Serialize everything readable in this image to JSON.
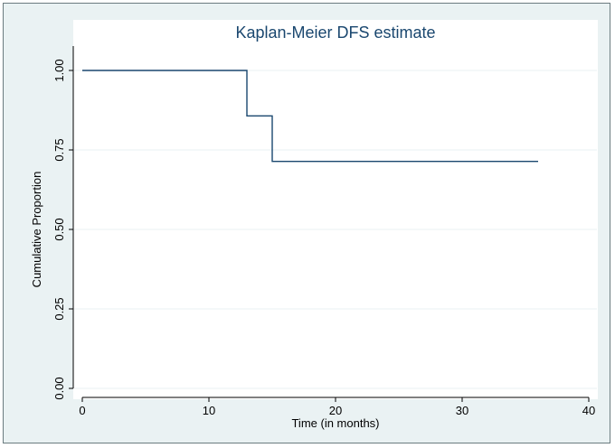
{
  "chart_data": {
    "type": "line",
    "title": "Kaplan-Meier DFS estimate",
    "xlabel": "Time (in months)",
    "ylabel": "Cumulative Proportion",
    "xlim": [
      0,
      40
    ],
    "ylim": [
      0,
      1
    ],
    "x_ticks": [
      0,
      10,
      20,
      30,
      40
    ],
    "x_tick_labels": [
      "0",
      "10",
      "20",
      "30",
      "40"
    ],
    "y_ticks": [
      0,
      0.25,
      0.5,
      0.75,
      1.0
    ],
    "y_tick_labels": [
      "0.00",
      "0.25",
      "0.50",
      "0.75",
      "1.00"
    ],
    "grid": true,
    "step": true,
    "series": [
      {
        "x": [
          0,
          13,
          15,
          36
        ],
        "y": [
          1.0,
          0.857,
          0.714,
          0.714
        ]
      }
    ],
    "colors": {
      "plot_background": "#ffffff",
      "outer_background": "#eaf2f3",
      "line": "#1a476f",
      "grid": "#eaf2f3",
      "title": "#1a476f"
    }
  }
}
